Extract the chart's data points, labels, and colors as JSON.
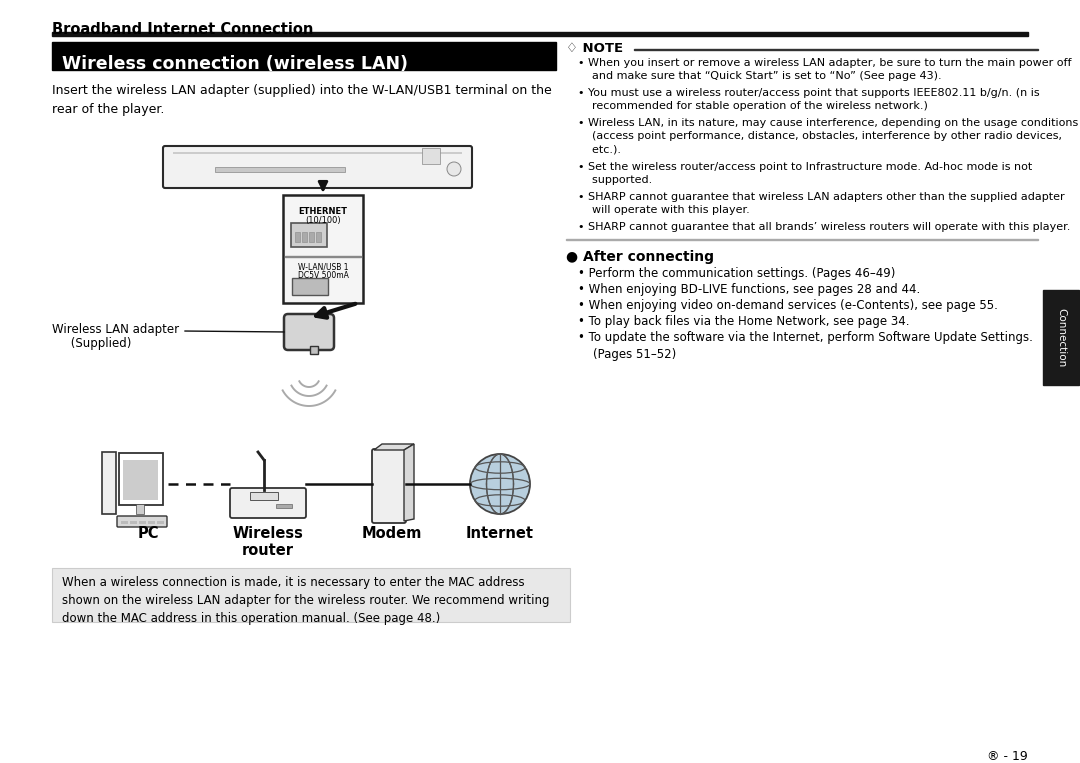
{
  "bg_color": "#ffffff",
  "section_title": "Broadband Internet Connection",
  "header_box_text": "Wireless connection (wireless LAN)",
  "header_box_bg": "#000000",
  "header_box_text_color": "#ffffff",
  "intro_text": "Insert the wireless LAN adapter (supplied) into the W-LAN/USB1 terminal on the\nrear of the player.",
  "label_adapter_1": "Wireless LAN adapter",
  "label_adapter_2": "     (Supplied)",
  "note_title": "♢ NOTE",
  "note_line_color": "#000000",
  "note_bullets": [
    "When you insert or remove a wireless LAN adapter, be sure to turn the main power off\n    and make sure that “Quick Start” is set to “No” (See page 43).",
    "You must use a wireless router/access point that supports IEEE802.11 b/g/n. (n is\n    recommended for stable operation of the wireless network.)",
    "Wireless LAN, in its nature, may cause interference, depending on the usage conditions\n    (access point performance, distance, obstacles, interference by other radio devices,\n    etc.).",
    "Set the wireless router/access point to Infrastructure mode. Ad-hoc mode is not\n    supported.",
    "SHARP cannot guarantee that wireless LAN adapters other than the supplied adapter\n    will operate with this player.",
    "SHARP cannot guarantee that all brands’ wireless routers will operate with this player."
  ],
  "after_title": "● After connecting",
  "after_bullets": [
    "Perform the communication settings. (Pages 46–49)",
    "When enjoying BD-LIVE functions, see pages 28 and 44.",
    "When enjoying video on-demand services (e-Contents), see page 55.",
    "To play back files via the Home Network, see page 34.",
    "To update the software via the Internet, perform Software Update Settings.\n    (Pages 51–52)"
  ],
  "diagram_labels": [
    "PC",
    "Wireless\nrouter",
    "Modem",
    "Internet"
  ],
  "footer_text": "When a wireless connection is made, it is necessary to enter the MAC address\nshown on the wireless LAN adapter for the wireless router. We recommend writing\ndown the MAC address in this operation manual. (See page 48.)",
  "side_tab_text": "Connection",
  "side_tab_bg": "#1a1a1a",
  "page_number": "® - 19"
}
